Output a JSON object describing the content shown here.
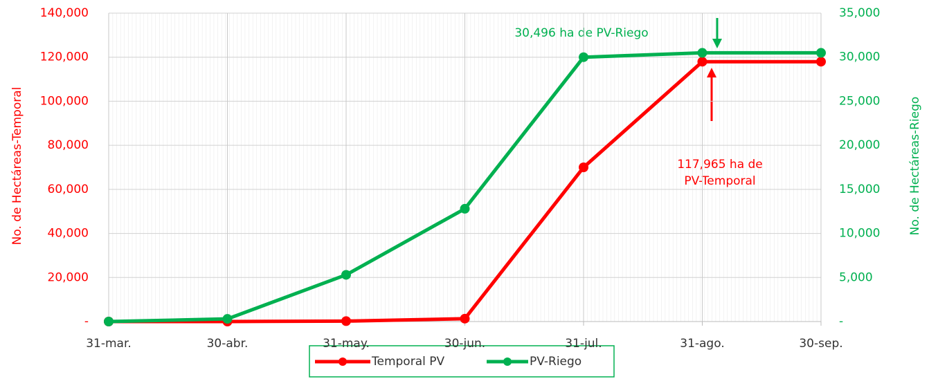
{
  "chart_data": {
    "type": "line",
    "categories": [
      "31-mar.",
      "30-abr.",
      "31-may.",
      "30-jun.",
      "31-jul.",
      "31-ago.",
      "30-sep."
    ],
    "series": [
      {
        "name": "Temporal PV",
        "color": "#ff0000",
        "values": [
          0,
          0,
          200,
          1300,
          70000,
          117965,
          117965
        ]
      },
      {
        "name": "PV-Riego",
        "color": "#00b050",
        "axis": "y2",
        "values": [
          0,
          300,
          5300,
          12800,
          30000,
          30496,
          30496
        ]
      }
    ],
    "ylabel": "No. de Hectáreas-Temporal",
    "y2label": "No. de Hectáreas-Riego",
    "ylim": [
      0,
      140000
    ],
    "yticks": [
      {
        "value": 0,
        "label": "-"
      },
      {
        "value": 20000,
        "label": "20,000"
      },
      {
        "value": 40000,
        "label": "40,000"
      },
      {
        "value": 60000,
        "label": "60,000"
      },
      {
        "value": 80000,
        "label": "80,000"
      },
      {
        "value": 100000,
        "label": "100,000"
      },
      {
        "value": 120000,
        "label": "120,000"
      },
      {
        "value": 140000,
        "label": "140,000"
      }
    ],
    "y2lim": [
      0,
      35000
    ],
    "y2ticks": [
      {
        "value": 0,
        "label": "-"
      },
      {
        "value": 5000,
        "label": "5,000"
      },
      {
        "value": 10000,
        "label": "10,000"
      },
      {
        "value": 15000,
        "label": "15,000"
      },
      {
        "value": 20000,
        "label": "20,000"
      },
      {
        "value": 25000,
        "label": "25,000"
      },
      {
        "value": 30000,
        "label": "30,000"
      },
      {
        "value": 35000,
        "label": "35,000"
      }
    ],
    "annotations": [
      "30,496 ha de PV-Riego",
      "117,965 ha de",
      "PV-Temporal"
    ],
    "grid": true
  }
}
